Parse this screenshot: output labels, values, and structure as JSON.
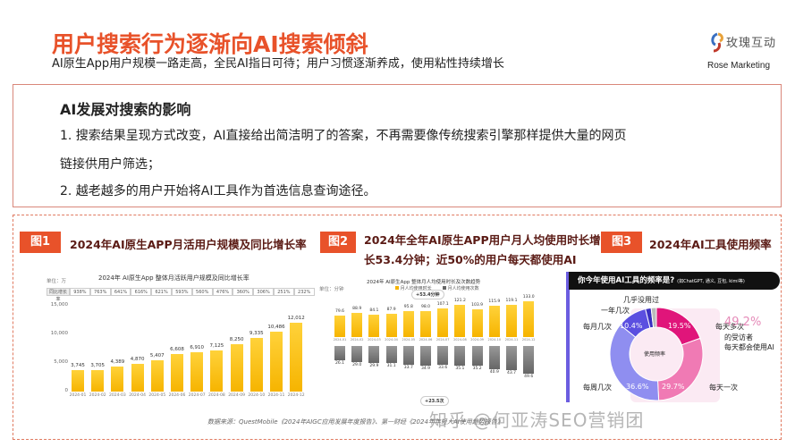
{
  "header": {
    "title": "用户搜索行为逐渐向AI搜索倾斜",
    "subtitle": "AI原生App用户规模一路走高，全民AI指日可待；用户习惯逐渐养成，使用粘性持续增长",
    "logo_cn": "玫瑰互动",
    "logo_en": "Rose Marketing"
  },
  "impact": {
    "title": "AI发展对搜索的影响",
    "line1": "1. 搜索结果呈现方式改变，AI直接给出简洁明了的答案，不再需要像传统搜索引擎那样提供大量的网页",
    "line2": "链接供用户筛选；",
    "line3": "2. 越老越多的用户开始将AI工具作为首选信息查询途径。"
  },
  "figures": [
    {
      "tag": "图1",
      "title": "2024年AI原生APP月活用户规模及同比增长率"
    },
    {
      "tag": "图2",
      "title_line1": "2024年全年AI原生APP用户月人均使用时长增",
      "title_line2": "长53.4分钟；近50%的用户每天都使用AI"
    },
    {
      "tag": "图3",
      "title": "2024年AI工具使用频率"
    }
  ],
  "chart_data": [
    {
      "type": "bar",
      "title": "2024年 AI原生App 整体月活跃用户规模及同比增长率",
      "unit": "单位：万",
      "rate_label": "同比增长率",
      "categories": [
        "2024-01",
        "2024-02",
        "2024-03",
        "2024-04",
        "2024-05",
        "2024-06",
        "2024-07",
        "2024-08",
        "2024-09",
        "2024-10",
        "2024-11",
        "2024-12"
      ],
      "values": [
        3745,
        3705,
        4389,
        4870,
        5407,
        6608,
        6910,
        7125,
        8250,
        9335,
        10486,
        12012
      ],
      "value_labels": [
        "3,745",
        "3,705",
        "4,389",
        "4,870",
        "5,407",
        "6,608",
        "6,910",
        "7,125",
        "8,250",
        "9,335",
        "10,486",
        "12,012"
      ],
      "growth_rates": [
        "938%",
        "763%",
        "641%",
        "616%",
        "621%",
        "593%",
        "560%",
        "476%",
        "360%",
        "306%",
        "251%",
        "232%"
      ],
      "y_ticks": [
        "15,000",
        "10,000",
        "5,000",
        "0"
      ],
      "ylim": [
        0,
        15000
      ]
    },
    {
      "type": "bar",
      "title": "2024年 AI原生App 整体月人均使用时长及次数趋势",
      "unit": "单位：分钟",
      "series": [
        {
          "name": "月人均使用时长",
          "values": [
            79.6,
            88.9,
            84.1,
            87.9,
            95.8,
            98.0,
            107.1,
            121.2,
            103.9,
            115.9,
            119.1,
            133.0
          ]
        },
        {
          "name": "月人均使用次数",
          "values": [
            26.1,
            29.0,
            29.9,
            31.1,
            33.7,
            34.9,
            33.6,
            35.1,
            35.2,
            40.9,
            43.7,
            49.6
          ]
        }
      ],
      "categories": [
        "2024-01",
        "2024-02",
        "2024-03",
        "2024-04",
        "2024-05",
        "2024-06",
        "2024-07",
        "2024-08",
        "2024-09",
        "2024-10",
        "2024-11",
        "2024-12"
      ],
      "callout_top": "+53.4分钟",
      "callout_bottom": "+23.5次",
      "y_ticks_top": [
        "150",
        "100",
        "50",
        "0"
      ],
      "y_ticks_bottom": [
        "0",
        "20",
        "40",
        "60",
        "80"
      ]
    },
    {
      "type": "pie",
      "title": "你今年使用AI工具的频率是?",
      "title_note": "(如ChatGPT, 通义, 豆包, kimi等)",
      "center_label": "使用频率",
      "categories": [
        "每天多次",
        "每天一次",
        "每周几次",
        "每月几次",
        "一年几次",
        "几乎没用过"
      ],
      "values": [
        19.5,
        29.7,
        36.6,
        10.4,
        2.0,
        1.8
      ],
      "value_labels": [
        "19.5%",
        "29.7%",
        "36.6%",
        "10.4%",
        "",
        ""
      ],
      "colors": [
        "#e0157a",
        "#f07ab4",
        "#8f8ef0",
        "#5b4fe0",
        "#3a2fc0",
        "#bbbbbb"
      ],
      "highlight": "49.2%",
      "highlight_note1": "的受访者",
      "highlight_note2": "每天都会使用AI"
    }
  ],
  "footer": {
    "source": "数据来源：QuestMobile《2024年AIGC应用发展年度报告》、第一财经《2024年年轻人AI使用趋势报告》",
    "watermark": "知乎 @何亚涛SEO营销团"
  }
}
